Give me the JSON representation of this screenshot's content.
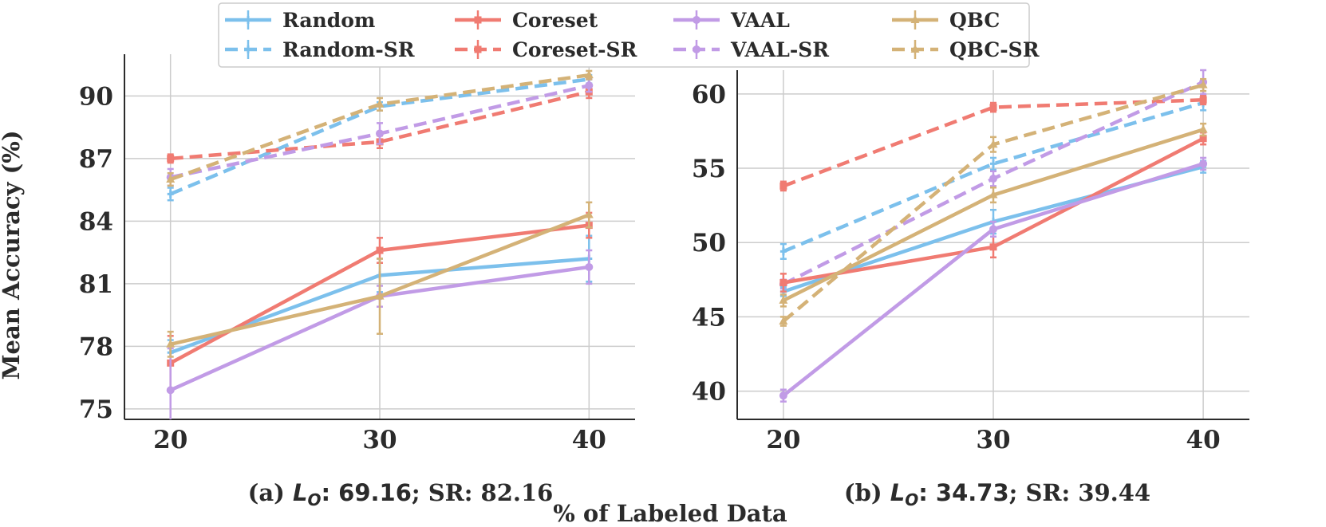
{
  "figure": {
    "ylabel": "Mean Accuracy (%)",
    "xlabel": "% of Labeled Data"
  },
  "legend": [
    {
      "name": "Random",
      "color": "#7cc0ec",
      "dashed": false
    },
    {
      "name": "Coreset",
      "color": "#f07b72",
      "dashed": false
    },
    {
      "name": "VAAL",
      "color": "#c19be6",
      "dashed": false
    },
    {
      "name": "QBC",
      "color": "#d4b277",
      "dashed": false
    },
    {
      "name": "Random-SR",
      "color": "#7cc0ec",
      "dashed": true
    },
    {
      "name": "Coreset-SR",
      "color": "#f07b72",
      "dashed": true
    },
    {
      "name": "VAAL-SR",
      "color": "#c19be6",
      "dashed": true
    },
    {
      "name": "QBC-SR",
      "color": "#d4b277",
      "dashed": true
    }
  ],
  "chart_data": [
    {
      "type": "line",
      "caption": {
        "prefix": "(a) ",
        "symbol": "L",
        "sub": "O",
        "value": ": 69.16",
        "suffix": "; SR: 82.16"
      },
      "x": [
        20,
        30,
        40
      ],
      "xticks": [
        20,
        30,
        40
      ],
      "yticks": [
        75,
        78,
        81,
        84,
        87,
        90
      ],
      "xlim": [
        17.8,
        42.2
      ],
      "ylim": [
        74.5,
        92.0
      ],
      "series": [
        {
          "name": "Random",
          "values": [
            77.7,
            81.4,
            82.2
          ],
          "errors": [
            0.6,
            0.8,
            1.1
          ]
        },
        {
          "name": "Coreset",
          "values": [
            77.2,
            82.6,
            83.8
          ],
          "errors": [
            1.3,
            0.6,
            0.6
          ]
        },
        {
          "name": "VAAL",
          "values": [
            75.9,
            80.4,
            81.8
          ],
          "errors": [
            2.0,
            0.5,
            0.8
          ]
        },
        {
          "name": "QBC",
          "values": [
            78.1,
            80.4,
            84.3
          ],
          "errors": [
            0.6,
            1.8,
            0.6
          ]
        },
        {
          "name": "Random-SR",
          "values": [
            85.3,
            89.5,
            90.8
          ],
          "errors": [
            0.3,
            0.2,
            0.2
          ]
        },
        {
          "name": "Coreset-SR",
          "values": [
            87.0,
            87.8,
            90.2
          ],
          "errors": [
            0.2,
            0.3,
            0.3
          ]
        },
        {
          "name": "VAAL-SR",
          "values": [
            86.1,
            88.2,
            90.5
          ],
          "errors": [
            0.4,
            0.5,
            0.3
          ]
        },
        {
          "name": "QBC-SR",
          "values": [
            86.0,
            89.6,
            91.0
          ],
          "errors": [
            0.3,
            0.3,
            0.2
          ]
        }
      ]
    },
    {
      "type": "line",
      "caption": {
        "prefix": "(b) ",
        "symbol": "L",
        "sub": "O",
        "value": ": 34.73",
        "suffix": "; SR: 39.44"
      },
      "x": [
        20,
        30,
        40
      ],
      "xticks": [
        20,
        30,
        40
      ],
      "yticks": [
        40,
        45,
        50,
        55,
        60
      ],
      "xlim": [
        17.8,
        42.2
      ],
      "ylim": [
        38.1,
        61.6
      ],
      "series": [
        {
          "name": "Random",
          "values": [
            46.7,
            51.4,
            55.1
          ],
          "errors": [
            0.3,
            0.8,
            0.4
          ]
        },
        {
          "name": "Coreset",
          "values": [
            47.3,
            49.7,
            57.0
          ],
          "errors": [
            0.6,
            0.7,
            0.4
          ]
        },
        {
          "name": "VAAL",
          "values": [
            39.7,
            50.9,
            55.3
          ],
          "errors": [
            0.4,
            0.5,
            0.4
          ]
        },
        {
          "name": "QBC",
          "values": [
            46.1,
            53.2,
            57.6
          ],
          "errors": [
            0.4,
            0.5,
            0.4
          ]
        },
        {
          "name": "Random-SR",
          "values": [
            49.4,
            55.3,
            59.4
          ],
          "errors": [
            0.5,
            0.4,
            0.5
          ]
        },
        {
          "name": "Coreset-SR",
          "values": [
            53.8,
            59.1,
            59.6
          ],
          "errors": [
            0.3,
            0.3,
            0.3
          ]
        },
        {
          "name": "VAAL-SR",
          "values": [
            47.2,
            54.3,
            60.8
          ],
          "errors": [
            0.3,
            0.5,
            0.8
          ]
        },
        {
          "name": "QBC-SR",
          "values": [
            44.7,
            56.6,
            60.6
          ],
          "errors": [
            0.3,
            0.5,
            0.4
          ]
        }
      ]
    }
  ]
}
